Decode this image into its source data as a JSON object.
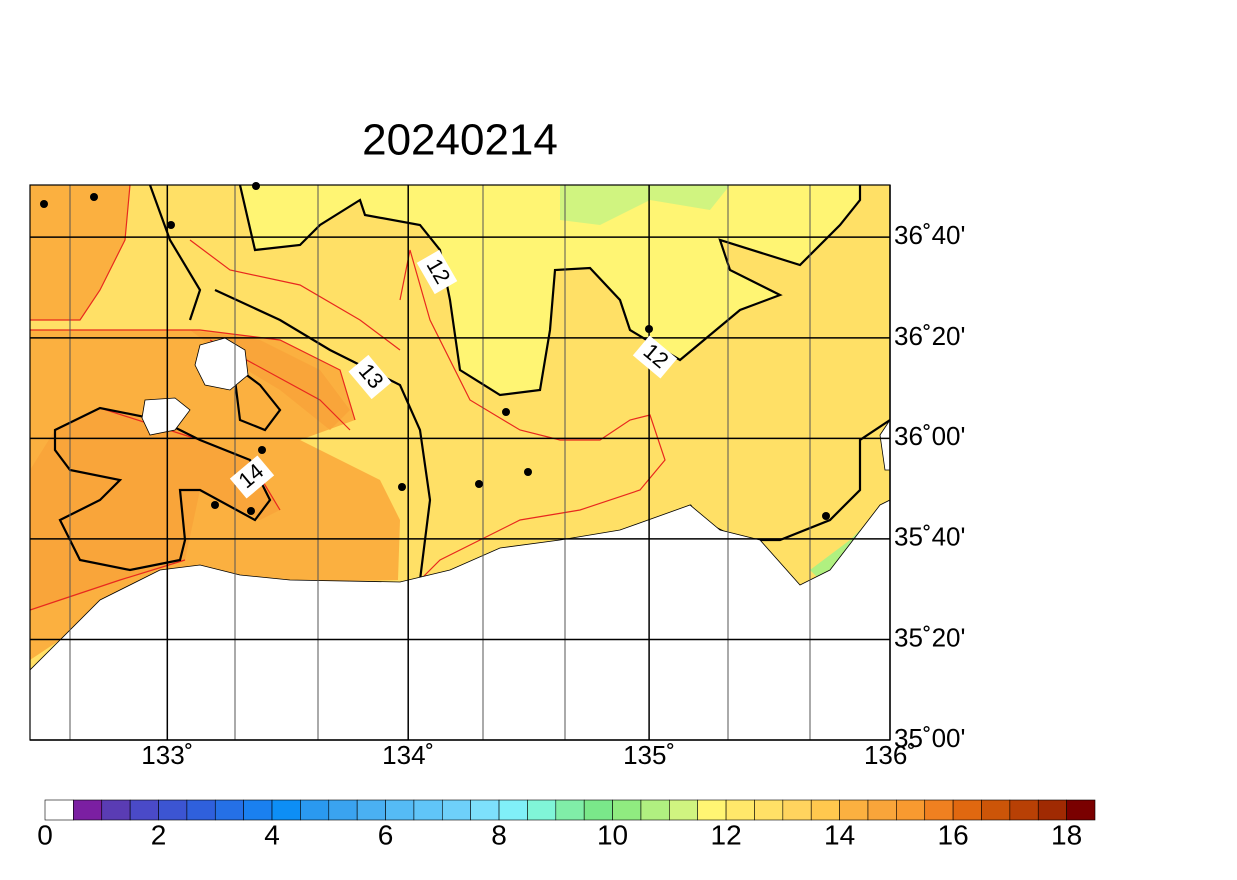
{
  "title": "20240214",
  "map": {
    "xlim": [
      132.43,
      136
    ],
    "ylim": [
      35,
      36.84
    ],
    "xticks": [
      {
        "value": 133,
        "label": "133˚"
      },
      {
        "value": 134,
        "label": "134˚"
      },
      {
        "value": 135,
        "label": "135˚"
      },
      {
        "value": 136,
        "label": "136˚"
      }
    ],
    "yticks": [
      {
        "value": 35,
        "label": "35˚00'"
      },
      {
        "value": 35.333,
        "label": "35˚20'"
      },
      {
        "value": 35.667,
        "label": "35˚40'"
      },
      {
        "value": 36,
        "label": "36˚00'"
      },
      {
        "value": 36.333,
        "label": "36˚20'"
      },
      {
        "value": 36.667,
        "label": "36˚40'"
      }
    ],
    "contour_labels": [
      "12",
      "12",
      "13",
      "14"
    ]
  },
  "colorbar": {
    "range": [
      0,
      18.5
    ],
    "ticks": [
      0,
      2,
      4,
      6,
      8,
      10,
      12,
      14,
      16,
      18
    ],
    "colors": [
      "#ffffff",
      "#7b1fa2",
      "#5a3cb4",
      "#4a4ac8",
      "#3c55d2",
      "#2f60dc",
      "#2570e6",
      "#1a80f0",
      "#0d8ef5",
      "#2a99f0",
      "#3aa3f0",
      "#4ab0f2",
      "#55bbf5",
      "#60c5f8",
      "#6ed0fa",
      "#7de0fc",
      "#80f0f8",
      "#80f5d8",
      "#80eea8",
      "#7ae88a",
      "#90ec80",
      "#b0f080",
      "#d0f480",
      "#fff573",
      "#ffe86a",
      "#ffe066",
      "#ffd45e",
      "#ffc84e",
      "#fbb040",
      "#f9a53a",
      "#f89a30",
      "#f08020",
      "#e06810",
      "#cc5508",
      "#b84005",
      "#a02a02",
      "#7a0000"
    ]
  }
}
